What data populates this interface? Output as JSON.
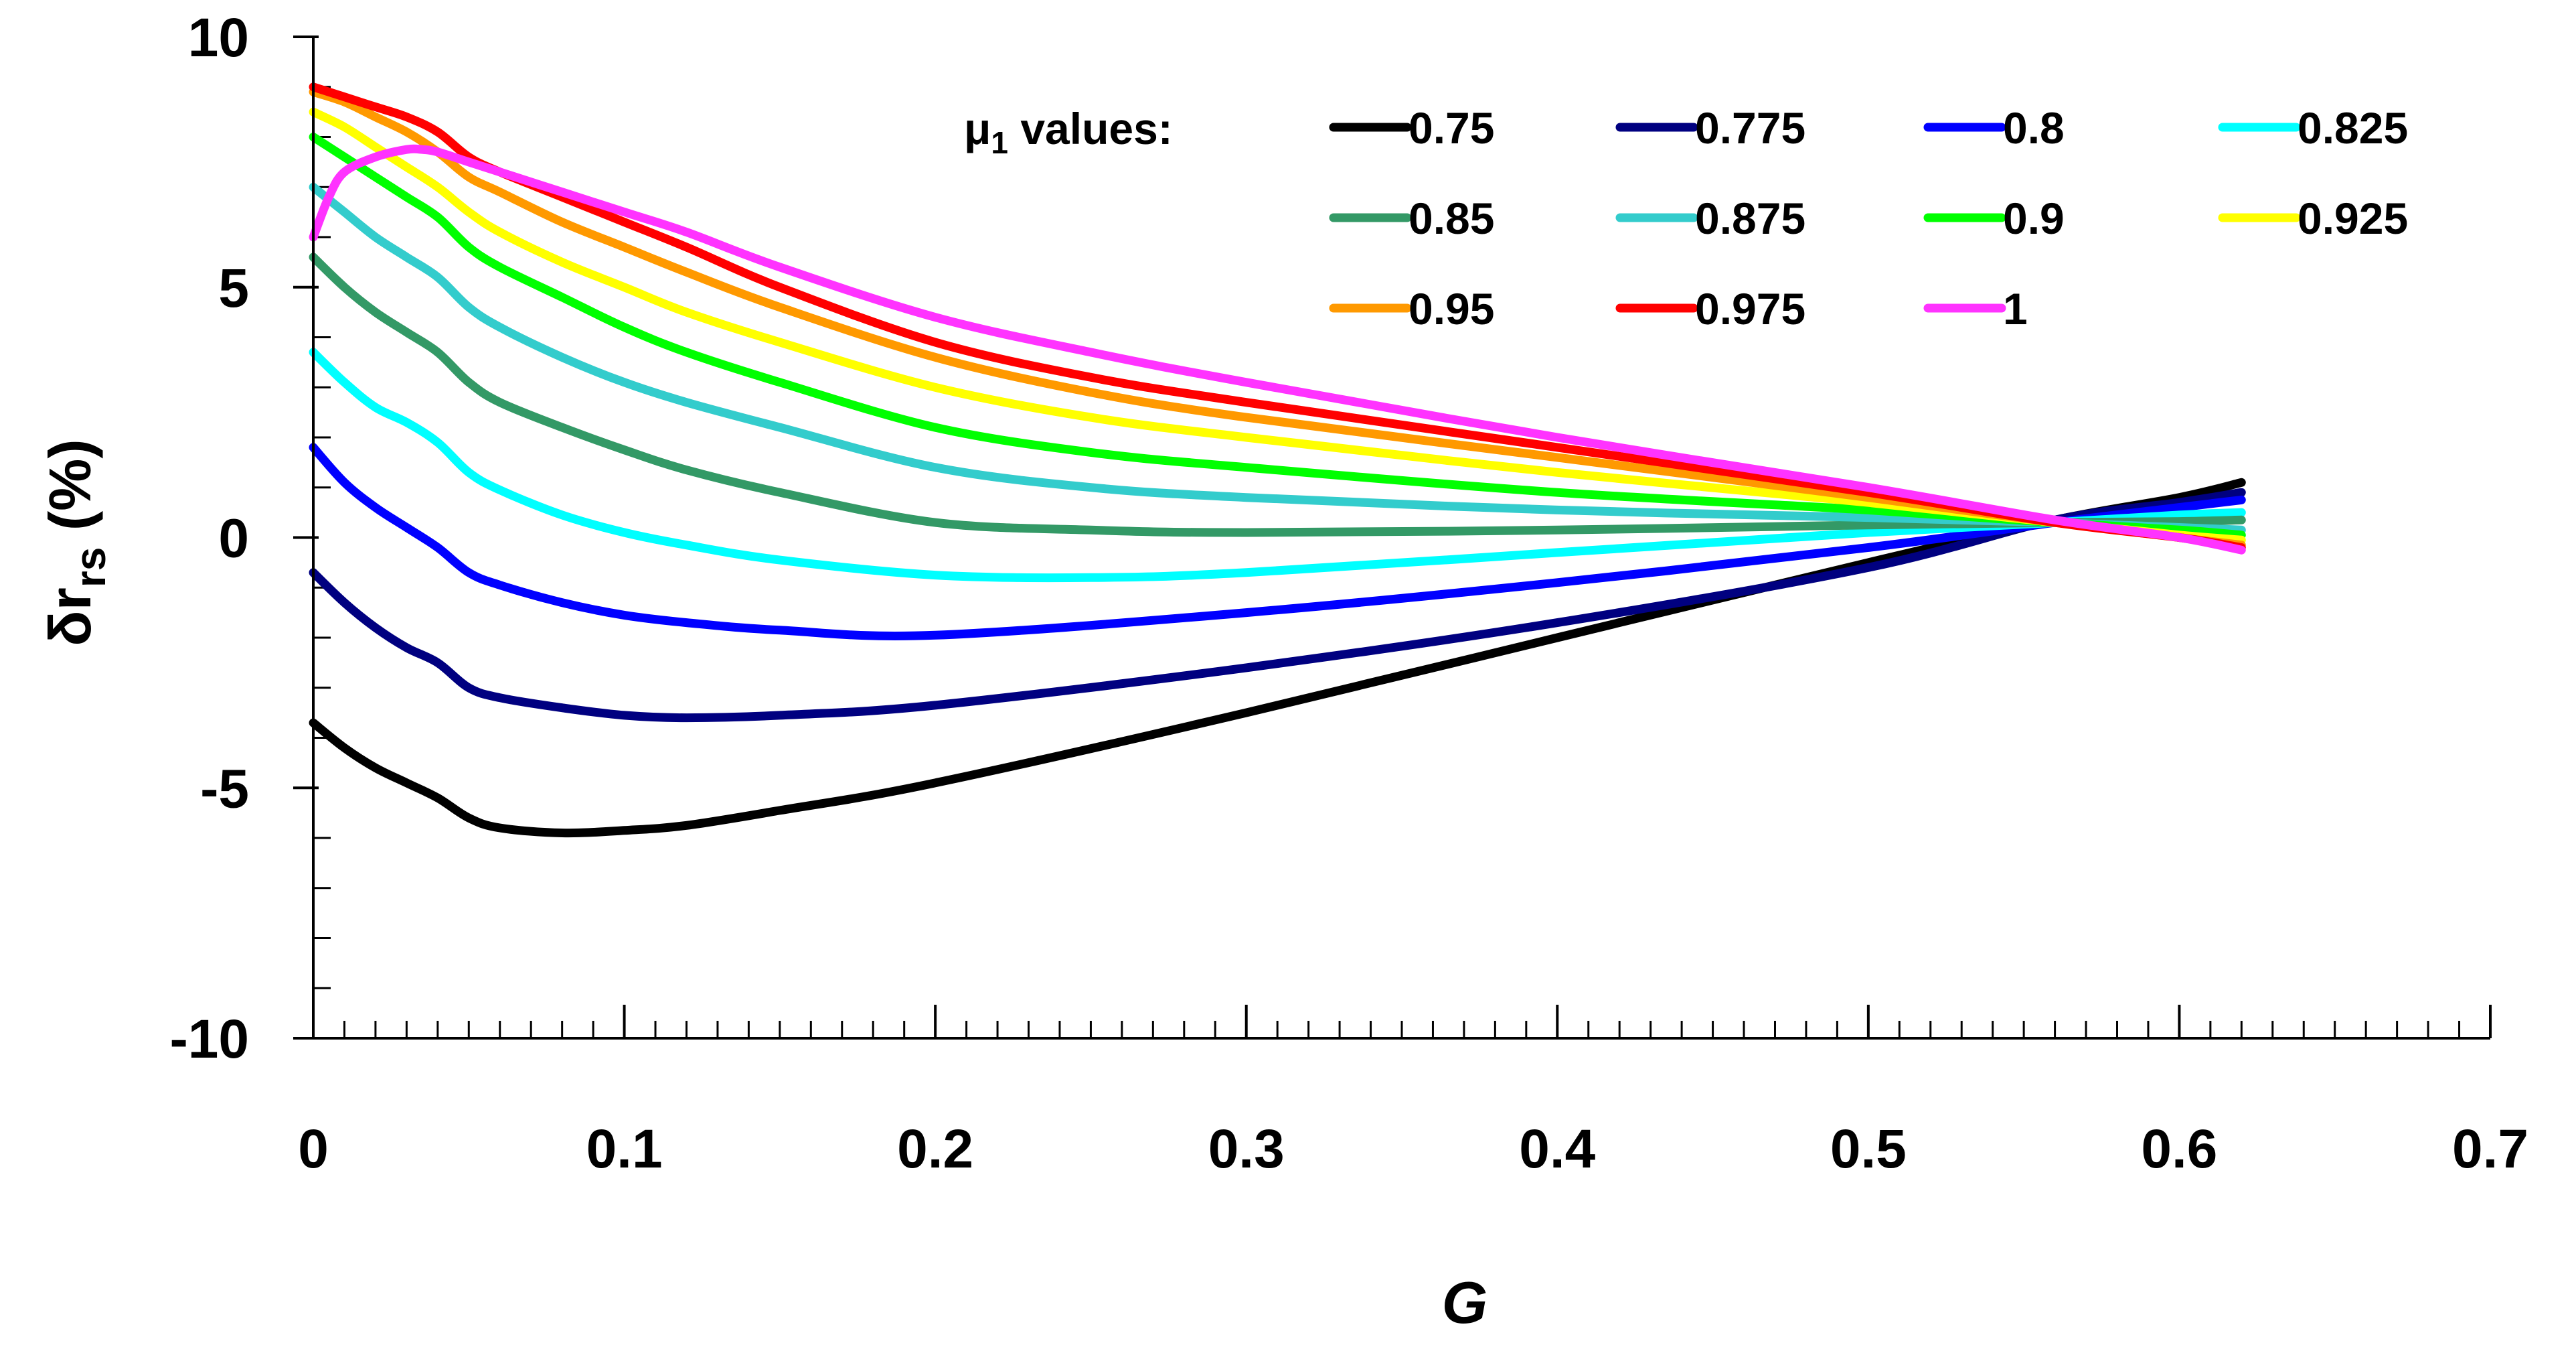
{
  "chart_data": {
    "type": "line",
    "title": "",
    "xlabel": "G",
    "ylabel": {
      "prefix": "δr",
      "subscript": "rs",
      "suffix": " (%)"
    },
    "xlim": [
      0,
      0.7
    ],
    "ylim": [
      -10,
      10
    ],
    "x_ticks": [
      0,
      0.1,
      0.2,
      0.3,
      0.4,
      0.5,
      0.6,
      0.7
    ],
    "x_tick_labels": [
      "0",
      "0.1",
      "0.2",
      "0.3",
      "0.4",
      "0.5",
      "0.6",
      "0.7"
    ],
    "y_ticks": [
      -10,
      -5,
      0,
      5,
      10
    ],
    "y_tick_labels": [
      "-10",
      "-5",
      "0",
      "5",
      "10"
    ],
    "legend": {
      "title_prefix": "μ",
      "title_subscript": "1",
      "title_suffix": " values:",
      "placement": "top-right"
    },
    "series": [
      {
        "name": "0.75",
        "color": "#000000",
        "x": [
          0,
          0.01,
          0.02,
          0.03,
          0.04,
          0.05,
          0.06,
          0.08,
          0.1,
          0.12,
          0.15,
          0.2,
          0.3,
          0.4,
          0.5,
          0.56,
          0.6,
          0.62
        ],
        "y": [
          -3.7,
          -4.2,
          -4.6,
          -4.9,
          -5.2,
          -5.6,
          -5.8,
          -5.9,
          -5.85,
          -5.75,
          -5.45,
          -4.9,
          -3.5,
          -2.0,
          -0.5,
          0.35,
          0.8,
          1.1
        ]
      },
      {
        "name": "0.775",
        "color": "#000080",
        "x": [
          0,
          0.01,
          0.02,
          0.03,
          0.04,
          0.05,
          0.06,
          0.08,
          0.1,
          0.12,
          0.15,
          0.2,
          0.3,
          0.4,
          0.5,
          0.56,
          0.6,
          0.62
        ],
        "y": [
          -0.7,
          -1.3,
          -1.8,
          -2.2,
          -2.5,
          -3.0,
          -3.2,
          -3.4,
          -3.55,
          -3.6,
          -3.55,
          -3.35,
          -2.6,
          -1.7,
          -0.6,
          0.35,
          0.7,
          0.9
        ]
      },
      {
        "name": "0.8",
        "color": "#0000ff",
        "x": [
          0,
          0.01,
          0.02,
          0.03,
          0.04,
          0.05,
          0.06,
          0.08,
          0.1,
          0.12,
          0.15,
          0.2,
          0.3,
          0.4,
          0.5,
          0.56,
          0.6,
          0.62
        ],
        "y": [
          1.8,
          1.1,
          0.6,
          0.2,
          -0.2,
          -0.7,
          -0.95,
          -1.3,
          -1.55,
          -1.7,
          -1.85,
          -1.95,
          -1.5,
          -0.9,
          -0.2,
          0.3,
          0.6,
          0.75
        ]
      },
      {
        "name": "0.825",
        "color": "#00ffff",
        "x": [
          0,
          0.01,
          0.02,
          0.03,
          0.04,
          0.05,
          0.06,
          0.08,
          0.1,
          0.12,
          0.15,
          0.2,
          0.25,
          0.3,
          0.4,
          0.5,
          0.56,
          0.6,
          0.62
        ],
        "y": [
          3.7,
          3.1,
          2.6,
          2.3,
          1.9,
          1.3,
          0.95,
          0.45,
          0.1,
          -0.15,
          -0.45,
          -0.75,
          -0.8,
          -0.7,
          -0.3,
          0.1,
          0.3,
          0.45,
          0.5
        ]
      },
      {
        "name": "0.85",
        "color": "#339966",
        "x": [
          0,
          0.01,
          0.02,
          0.03,
          0.04,
          0.05,
          0.06,
          0.08,
          0.1,
          0.12,
          0.15,
          0.2,
          0.25,
          0.3,
          0.4,
          0.5,
          0.56,
          0.6,
          0.62
        ],
        "y": [
          5.6,
          5.0,
          4.5,
          4.1,
          3.7,
          3.1,
          2.7,
          2.2,
          1.75,
          1.35,
          0.9,
          0.3,
          0.15,
          0.1,
          0.15,
          0.25,
          0.3,
          0.32,
          0.35
        ]
      },
      {
        "name": "0.875",
        "color": "#33cccc",
        "x": [
          0,
          0.01,
          0.02,
          0.03,
          0.04,
          0.05,
          0.06,
          0.08,
          0.1,
          0.12,
          0.15,
          0.2,
          0.25,
          0.3,
          0.4,
          0.5,
          0.56,
          0.6,
          0.62
        ],
        "y": [
          7.0,
          6.5,
          6.0,
          5.6,
          5.2,
          4.6,
          4.2,
          3.6,
          3.1,
          2.7,
          2.2,
          1.4,
          1.0,
          0.8,
          0.55,
          0.4,
          0.3,
          0.2,
          0.15
        ]
      },
      {
        "name": "0.9",
        "color": "#00ff00",
        "x": [
          0,
          0.01,
          0.02,
          0.03,
          0.04,
          0.05,
          0.06,
          0.08,
          0.1,
          0.12,
          0.15,
          0.2,
          0.25,
          0.3,
          0.4,
          0.5,
          0.56,
          0.6,
          0.62
        ],
        "y": [
          8.0,
          7.6,
          7.2,
          6.8,
          6.4,
          5.8,
          5.4,
          4.8,
          4.2,
          3.7,
          3.1,
          2.2,
          1.7,
          1.4,
          0.9,
          0.55,
          0.3,
          0.15,
          0.05
        ]
      },
      {
        "name": "0.925",
        "color": "#ffff00",
        "x": [
          0,
          0.01,
          0.02,
          0.03,
          0.04,
          0.05,
          0.06,
          0.08,
          0.1,
          0.12,
          0.15,
          0.2,
          0.25,
          0.3,
          0.4,
          0.5,
          0.56,
          0.6,
          0.62
        ],
        "y": [
          8.5,
          8.2,
          7.8,
          7.4,
          7.0,
          6.5,
          6.1,
          5.5,
          5.0,
          4.5,
          3.9,
          3.0,
          2.4,
          2.0,
          1.3,
          0.7,
          0.3,
          0.05,
          -0.05
        ]
      },
      {
        "name": "0.95",
        "color": "#ff9900",
        "x": [
          0,
          0.01,
          0.02,
          0.03,
          0.04,
          0.05,
          0.06,
          0.08,
          0.1,
          0.12,
          0.15,
          0.2,
          0.25,
          0.3,
          0.4,
          0.5,
          0.56,
          0.6,
          0.62
        ],
        "y": [
          8.9,
          8.7,
          8.4,
          8.1,
          7.7,
          7.2,
          6.9,
          6.3,
          5.8,
          5.3,
          4.6,
          3.6,
          2.9,
          2.4,
          1.6,
          0.8,
          0.3,
          0.0,
          -0.15
        ]
      },
      {
        "name": "0.975",
        "color": "#ff0000",
        "x": [
          0,
          0.01,
          0.02,
          0.03,
          0.04,
          0.05,
          0.06,
          0.08,
          0.1,
          0.12,
          0.15,
          0.2,
          0.25,
          0.3,
          0.4,
          0.5,
          0.56,
          0.6,
          0.62
        ],
        "y": [
          9.0,
          8.8,
          8.6,
          8.4,
          8.1,
          7.6,
          7.3,
          6.8,
          6.3,
          5.8,
          5.0,
          3.9,
          3.2,
          2.7,
          1.8,
          0.9,
          0.3,
          0.0,
          -0.2
        ]
      },
      {
        "name": "1",
        "color": "#ff33ff",
        "x": [
          0,
          0.005,
          0.01,
          0.02,
          0.03,
          0.035,
          0.04,
          0.05,
          0.06,
          0.08,
          0.1,
          0.12,
          0.15,
          0.2,
          0.25,
          0.3,
          0.4,
          0.5,
          0.56,
          0.6,
          0.62
        ],
        "y": [
          6.0,
          6.8,
          7.3,
          7.6,
          7.75,
          7.75,
          7.7,
          7.5,
          7.3,
          6.9,
          6.5,
          6.1,
          5.4,
          4.4,
          3.7,
          3.1,
          2.0,
          1.0,
          0.35,
          0.0,
          -0.25
        ]
      }
    ]
  }
}
